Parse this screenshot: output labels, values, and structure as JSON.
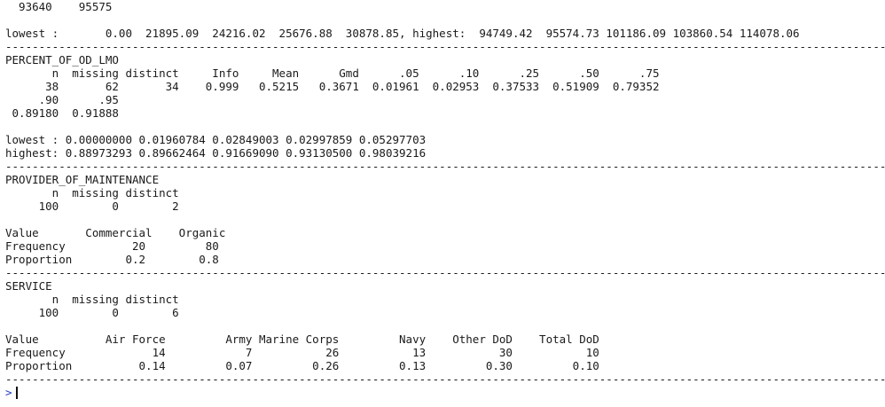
{
  "console": {
    "lines": [
      "  93640    95575",
      "",
      "lowest :       0.00  21895.09  24216.02  25676.88  30878.85, highest:  94749.42  95574.73 101186.09 103860.54 114078.06",
      "--------------------------------------------------------------------------------------------------------------------------------------",
      "PERCENT_OF_OD_LMO",
      "       n  missing distinct     Info     Mean      Gmd      .05      .10      .25      .50      .75",
      "      38       62       34    0.999   0.5215   0.3671  0.01961  0.02953  0.37533  0.51909  0.79352",
      "     .90      .95",
      " 0.89180  0.91888",
      "",
      "lowest : 0.00000000 0.01960784 0.02849003 0.02997859 0.05297703",
      "highest: 0.88973293 0.89662464 0.91669090 0.93130500 0.98039216",
      "--------------------------------------------------------------------------------------------------------------------------------------",
      "PROVIDER_OF_MAINTENANCE",
      "       n  missing distinct",
      "     100        0        2",
      "",
      "Value       Commercial    Organic",
      "Frequency          20         80",
      "Proportion        0.2        0.8",
      "--------------------------------------------------------------------------------------------------------------------------------------",
      "SERVICE",
      "       n  missing distinct",
      "     100        0        6",
      "",
      "Value          Air Force         Army Marine Corps         Navy    Other DoD    Total DoD",
      "Frequency             14            7           26           13           30           10",
      "Proportion          0.14         0.07         0.26         0.13         0.30         0.10",
      "--------------------------------------------------------------------------------------------------------------------------------------"
    ],
    "prompt_symbol": ">"
  }
}
